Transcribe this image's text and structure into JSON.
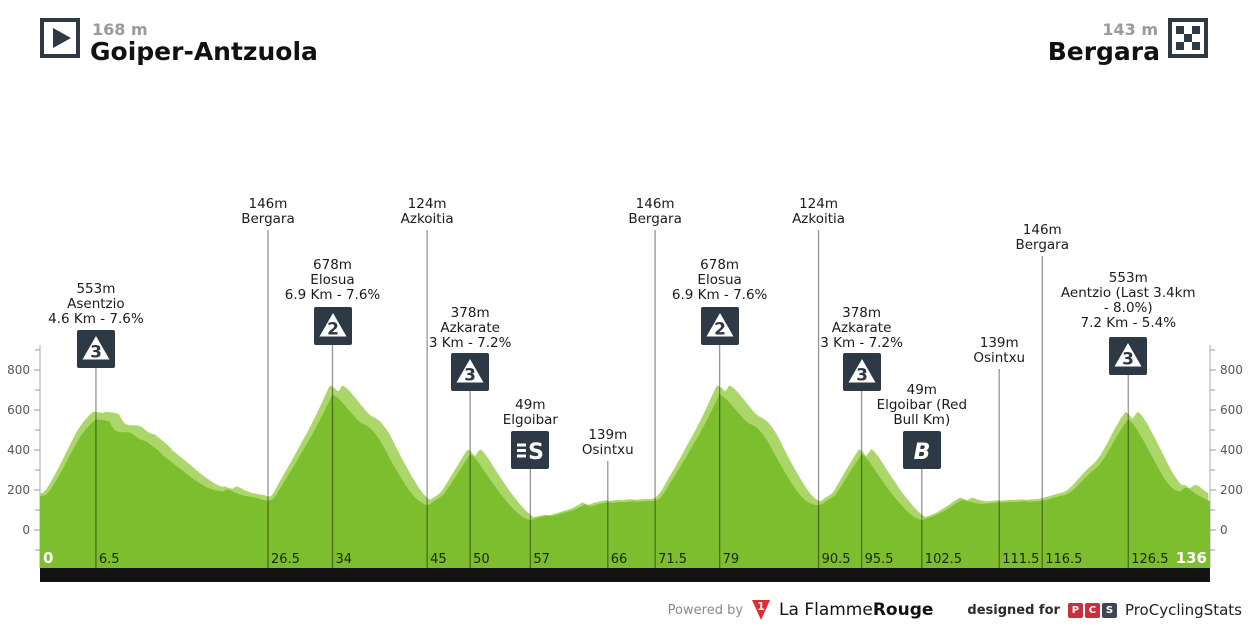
{
  "header": {
    "start_elevation": "168 m",
    "start_name": "Goiper-Antzuola",
    "finish_elevation": "143 m",
    "finish_name": "Bergara"
  },
  "footer": {
    "powered_by": "Powered by",
    "lfr_regular": "La Flamme",
    "lfr_bold": "Rouge",
    "designed_for": "designed for",
    "pcs_letters": [
      "P",
      "C",
      "S"
    ],
    "pcs_name": "ProCyclingStats"
  },
  "colors": {
    "profile_main": "#7dbe2f",
    "profile_light": "#abd76a",
    "icon_dark": "#2d3944",
    "axis_line": "#c8c8c8",
    "axis_text": "#555555",
    "bar_black": "#131313",
    "tick_text": "#1c2408",
    "lfr_red": "#e12b32"
  },
  "chart_data": {
    "type": "area",
    "x_max": 136,
    "y_ticks": [
      0,
      200,
      400,
      600,
      800
    ],
    "y_minor_ticks": [
      -100,
      100,
      300,
      500,
      700,
      900
    ],
    "x_edge_ticks": [
      {
        "km": 0,
        "label": "0"
      },
      {
        "km": 136,
        "label": "136"
      }
    ],
    "markers": [
      {
        "km": 6.5,
        "tick": "6.5",
        "lines": [
          "553m",
          "Asentzio",
          "4.6 Km - 7.6%"
        ],
        "icon": "cat3",
        "top": 282,
        "icon_y": 330,
        "line_top": 368
      },
      {
        "km": 26.5,
        "tick": "26.5",
        "lines": [
          "146m",
          "Bergara"
        ],
        "icon": null,
        "top": 197,
        "line_top": 230
      },
      {
        "km": 34,
        "tick": "34",
        "lines": [
          "678m",
          "Elosua",
          "6.9 Km - 7.6%"
        ],
        "icon": "cat2",
        "top": 258,
        "icon_y": 307,
        "line_top": 345
      },
      {
        "km": 45,
        "tick": "45",
        "lines": [
          "124m",
          "Azkoitia"
        ],
        "icon": null,
        "top": 197,
        "line_top": 230
      },
      {
        "km": 50,
        "tick": "50",
        "lines": [
          "378m",
          "Azkarate",
          "3 Km - 7.2%"
        ],
        "icon": "cat3",
        "top": 306,
        "icon_y": 353,
        "line_top": 391
      },
      {
        "km": 57,
        "tick": "57",
        "lines": [
          "49m",
          "Elgoibar"
        ],
        "icon": "sprint",
        "top": 398,
        "icon_y": 431,
        "line_top": 469
      },
      {
        "km": 66,
        "tick": "66",
        "lines": [
          "139m",
          "Osintxu"
        ],
        "icon": null,
        "top": 428,
        "line_top": 461
      },
      {
        "km": 71.5,
        "tick": "71.5",
        "lines": [
          "146m",
          "Bergara"
        ],
        "icon": null,
        "top": 197,
        "line_top": 230
      },
      {
        "km": 79,
        "tick": "79",
        "lines": [
          "678m",
          "Elosua",
          "6.9 Km - 7.6%"
        ],
        "icon": "cat2",
        "top": 258,
        "icon_y": 307,
        "line_top": 345
      },
      {
        "km": 90.5,
        "tick": "90.5",
        "lines": [
          "124m",
          "Azkoitia"
        ],
        "icon": null,
        "top": 197,
        "line_top": 230
      },
      {
        "km": 95.5,
        "tick": "95.5",
        "lines": [
          "378m",
          "Azkarate",
          "3 Km - 7.2%"
        ],
        "icon": "cat3",
        "top": 306,
        "icon_y": 353,
        "line_top": 391
      },
      {
        "km": 102.5,
        "tick": "102.5",
        "lines": [
          "49m",
          "Elgoibar (Red",
          "Bull Km)"
        ],
        "icon": "bull",
        "top": 383,
        "icon_y": 431,
        "line_top": 469
      },
      {
        "km": 111.5,
        "tick": "111.5",
        "lines": [
          "139m",
          "Osintxu"
        ],
        "icon": null,
        "top": 336,
        "line_top": 369
      },
      {
        "km": 116.5,
        "tick": "116.5",
        "lines": [
          "146m",
          "Bergara"
        ],
        "icon": null,
        "top": 223,
        "line_top": 256
      },
      {
        "km": 126.5,
        "tick": "126.5",
        "lines": [
          "553m",
          "Aentzio (Last 3.4km",
          "- 8.0%)",
          "7.2 Km - 5.4%"
        ],
        "icon": "cat3",
        "top": 271,
        "icon_y": 337,
        "line_top": 375
      }
    ],
    "profile": [
      [
        0,
        168
      ],
      [
        0.7,
        175
      ],
      [
        1.2,
        200
      ],
      [
        1.7,
        235
      ],
      [
        2.2,
        272
      ],
      [
        2.7,
        310
      ],
      [
        3.2,
        350
      ],
      [
        3.7,
        392
      ],
      [
        4.2,
        432
      ],
      [
        4.7,
        468
      ],
      [
        5.2,
        498
      ],
      [
        5.7,
        522
      ],
      [
        6.1,
        540
      ],
      [
        6.5,
        553
      ],
      [
        6.9,
        551
      ],
      [
        7.6,
        548
      ],
      [
        8.1,
        540
      ],
      [
        8.4,
        515
      ],
      [
        8.8,
        495
      ],
      [
        9.3,
        490
      ],
      [
        10.3,
        488
      ],
      [
        10.8,
        480
      ],
      [
        11.3,
        462
      ],
      [
        11.8,
        450
      ],
      [
        12.3,
        445
      ],
      [
        12.8,
        428
      ],
      [
        13.3,
        412
      ],
      [
        13.8,
        396
      ],
      [
        14.3,
        372
      ],
      [
        14.8,
        356
      ],
      [
        15.3,
        340
      ],
      [
        15.8,
        322
      ],
      [
        16.3,
        306
      ],
      [
        16.8,
        290
      ],
      [
        17.3,
        272
      ],
      [
        17.8,
        256
      ],
      [
        18.3,
        241
      ],
      [
        18.8,
        228
      ],
      [
        19.3,
        215
      ],
      [
        19.8,
        206
      ],
      [
        20.3,
        200
      ],
      [
        20.8,
        195
      ],
      [
        21.3,
        193
      ],
      [
        21.7,
        204
      ],
      [
        22.2,
        197
      ],
      [
        22.7,
        186
      ],
      [
        23.2,
        178
      ],
      [
        23.7,
        172
      ],
      [
        24.2,
        168
      ],
      [
        24.7,
        165
      ],
      [
        25.2,
        160
      ],
      [
        25.7,
        154
      ],
      [
        26.1,
        149
      ],
      [
        26.5,
        146
      ],
      [
        27,
        152
      ],
      [
        27.5,
        176
      ],
      [
        28,
        215
      ],
      [
        28.5,
        250
      ],
      [
        29,
        285
      ],
      [
        29.5,
        320
      ],
      [
        30,
        356
      ],
      [
        30.5,
        394
      ],
      [
        31,
        430
      ],
      [
        31.5,
        466
      ],
      [
        32,
        506
      ],
      [
        32.5,
        546
      ],
      [
        33,
        590
      ],
      [
        33.5,
        634
      ],
      [
        34,
        678
      ],
      [
        34.5,
        664
      ],
      [
        35,
        645
      ],
      [
        35.5,
        620
      ],
      [
        36,
        595
      ],
      [
        36.5,
        570
      ],
      [
        37,
        546
      ],
      [
        37.5,
        531
      ],
      [
        38,
        521
      ],
      [
        38.5,
        505
      ],
      [
        39,
        480
      ],
      [
        39.5,
        450
      ],
      [
        40,
        411
      ],
      [
        40.5,
        371
      ],
      [
        41,
        331
      ],
      [
        41.5,
        295
      ],
      [
        42,
        259
      ],
      [
        42.5,
        225
      ],
      [
        43,
        194
      ],
      [
        43.5,
        167
      ],
      [
        44,
        147
      ],
      [
        44.5,
        134
      ],
      [
        45,
        124
      ],
      [
        45.4,
        131
      ],
      [
        45.9,
        148
      ],
      [
        46.4,
        160
      ],
      [
        47,
        181
      ],
      [
        47.5,
        214
      ],
      [
        48,
        246
      ],
      [
        48.5,
        280
      ],
      [
        49,
        312
      ],
      [
        49.5,
        346
      ],
      [
        50,
        378
      ],
      [
        50.3,
        371
      ],
      [
        50.8,
        346
      ],
      [
        51.3,
        316
      ],
      [
        52,
        271
      ],
      [
        52.5,
        241
      ],
      [
        53,
        211
      ],
      [
        53.5,
        181
      ],
      [
        54,
        155
      ],
      [
        54.5,
        130
      ],
      [
        55,
        106
      ],
      [
        55.5,
        86
      ],
      [
        56,
        68
      ],
      [
        56.5,
        56
      ],
      [
        57,
        49
      ],
      [
        57.5,
        56
      ],
      [
        58,
        63
      ],
      [
        58.5,
        67
      ],
      [
        59,
        72
      ],
      [
        59.5,
        69
      ],
      [
        60,
        75
      ],
      [
        60.5,
        81
      ],
      [
        61,
        87
      ],
      [
        61.5,
        93
      ],
      [
        62,
        99
      ],
      [
        62.5,
        109
      ],
      [
        63,
        119
      ],
      [
        63.3,
        129
      ],
      [
        63.7,
        122
      ],
      [
        64.1,
        118
      ],
      [
        64.6,
        125
      ],
      [
        65.1,
        131
      ],
      [
        65.6,
        135
      ],
      [
        66,
        139
      ],
      [
        66.5,
        136
      ],
      [
        67,
        138
      ],
      [
        67.5,
        141
      ],
      [
        68,
        139
      ],
      [
        68.5,
        142
      ],
      [
        69,
        144
      ],
      [
        69.5,
        141
      ],
      [
        70,
        143
      ],
      [
        70.5,
        144
      ],
      [
        71,
        145
      ],
      [
        71.5,
        146
      ],
      [
        72,
        156
      ],
      [
        72.5,
        181
      ],
      [
        73,
        216
      ],
      [
        73.5,
        251
      ],
      [
        74,
        286
      ],
      [
        74.5,
        321
      ],
      [
        75,
        357
      ],
      [
        75.5,
        395
      ],
      [
        76,
        431
      ],
      [
        76.5,
        467
      ],
      [
        77,
        507
      ],
      [
        77.5,
        547
      ],
      [
        78,
        591
      ],
      [
        78.5,
        635
      ],
      [
        79,
        678
      ],
      [
        79.5,
        664
      ],
      [
        80,
        645
      ],
      [
        80.5,
        620
      ],
      [
        81,
        595
      ],
      [
        81.5,
        570
      ],
      [
        82,
        546
      ],
      [
        82.5,
        531
      ],
      [
        83,
        521
      ],
      [
        83.5,
        505
      ],
      [
        84,
        480
      ],
      [
        84.5,
        450
      ],
      [
        85,
        411
      ],
      [
        85.5,
        371
      ],
      [
        86,
        331
      ],
      [
        86.5,
        295
      ],
      [
        87,
        259
      ],
      [
        87.5,
        225
      ],
      [
        88,
        194
      ],
      [
        88.5,
        167
      ],
      [
        89,
        147
      ],
      [
        89.5,
        134
      ],
      [
        90,
        127
      ],
      [
        90.5,
        124
      ],
      [
        91,
        132
      ],
      [
        91.5,
        149
      ],
      [
        92,
        161
      ],
      [
        92.5,
        176
      ],
      [
        93,
        211
      ],
      [
        93.5,
        246
      ],
      [
        94,
        281
      ],
      [
        94.5,
        313
      ],
      [
        95,
        347
      ],
      [
        95.5,
        378
      ],
      [
        95.8,
        371
      ],
      [
        96.3,
        346
      ],
      [
        96.8,
        316
      ],
      [
        97.5,
        271
      ],
      [
        98,
        241
      ],
      [
        98.5,
        211
      ],
      [
        99,
        181
      ],
      [
        99.5,
        155
      ],
      [
        100,
        131
      ],
      [
        100.5,
        106
      ],
      [
        101,
        86
      ],
      [
        101.5,
        68
      ],
      [
        102,
        56
      ],
      [
        102.5,
        49
      ],
      [
        103,
        57
      ],
      [
        103.5,
        64
      ],
      [
        104,
        72
      ],
      [
        104.5,
        81
      ],
      [
        105,
        93
      ],
      [
        105.5,
        106
      ],
      [
        106,
        119
      ],
      [
        106.5,
        133
      ],
      [
        107,
        146
      ],
      [
        107.3,
        152
      ],
      [
        107.8,
        143
      ],
      [
        108.3,
        138
      ],
      [
        109,
        133
      ],
      [
        109.5,
        130
      ],
      [
        110,
        132
      ],
      [
        110.5,
        134
      ],
      [
        111,
        136
      ],
      [
        111.5,
        139
      ],
      [
        112,
        137
      ],
      [
        112.5,
        139
      ],
      [
        113,
        141
      ],
      [
        113.5,
        140
      ],
      [
        114,
        142
      ],
      [
        114.5,
        143
      ],
      [
        115,
        141
      ],
      [
        115.5,
        143
      ],
      [
        116,
        144
      ],
      [
        116.5,
        146
      ],
      [
        117,
        151
      ],
      [
        117.5,
        157
      ],
      [
        118,
        163
      ],
      [
        118.5,
        169
      ],
      [
        119,
        173
      ],
      [
        119.5,
        181
      ],
      [
        120,
        196
      ],
      [
        120.5,
        216
      ],
      [
        121,
        239
      ],
      [
        121.5,
        261
      ],
      [
        122,
        283
      ],
      [
        122.5,
        301
      ],
      [
        123,
        319
      ],
      [
        123.5,
        346
      ],
      [
        124,
        381
      ],
      [
        124.5,
        416
      ],
      [
        125,
        456
      ],
      [
        125.5,
        491
      ],
      [
        126,
        526
      ],
      [
        126.5,
        553
      ],
      [
        127,
        534
      ],
      [
        127.5,
        504
      ],
      [
        128,
        467
      ],
      [
        128.5,
        429
      ],
      [
        129,
        389
      ],
      [
        129.5,
        349
      ],
      [
        130,
        309
      ],
      [
        130.5,
        271
      ],
      [
        131,
        239
      ],
      [
        131.5,
        214
      ],
      [
        132,
        198
      ],
      [
        132.5,
        192
      ],
      [
        133,
        209
      ],
      [
        133.3,
        212
      ],
      [
        133.8,
        198
      ],
      [
        134.3,
        182
      ],
      [
        134.8,
        170
      ],
      [
        135.3,
        158
      ],
      [
        136,
        143
      ]
    ]
  }
}
